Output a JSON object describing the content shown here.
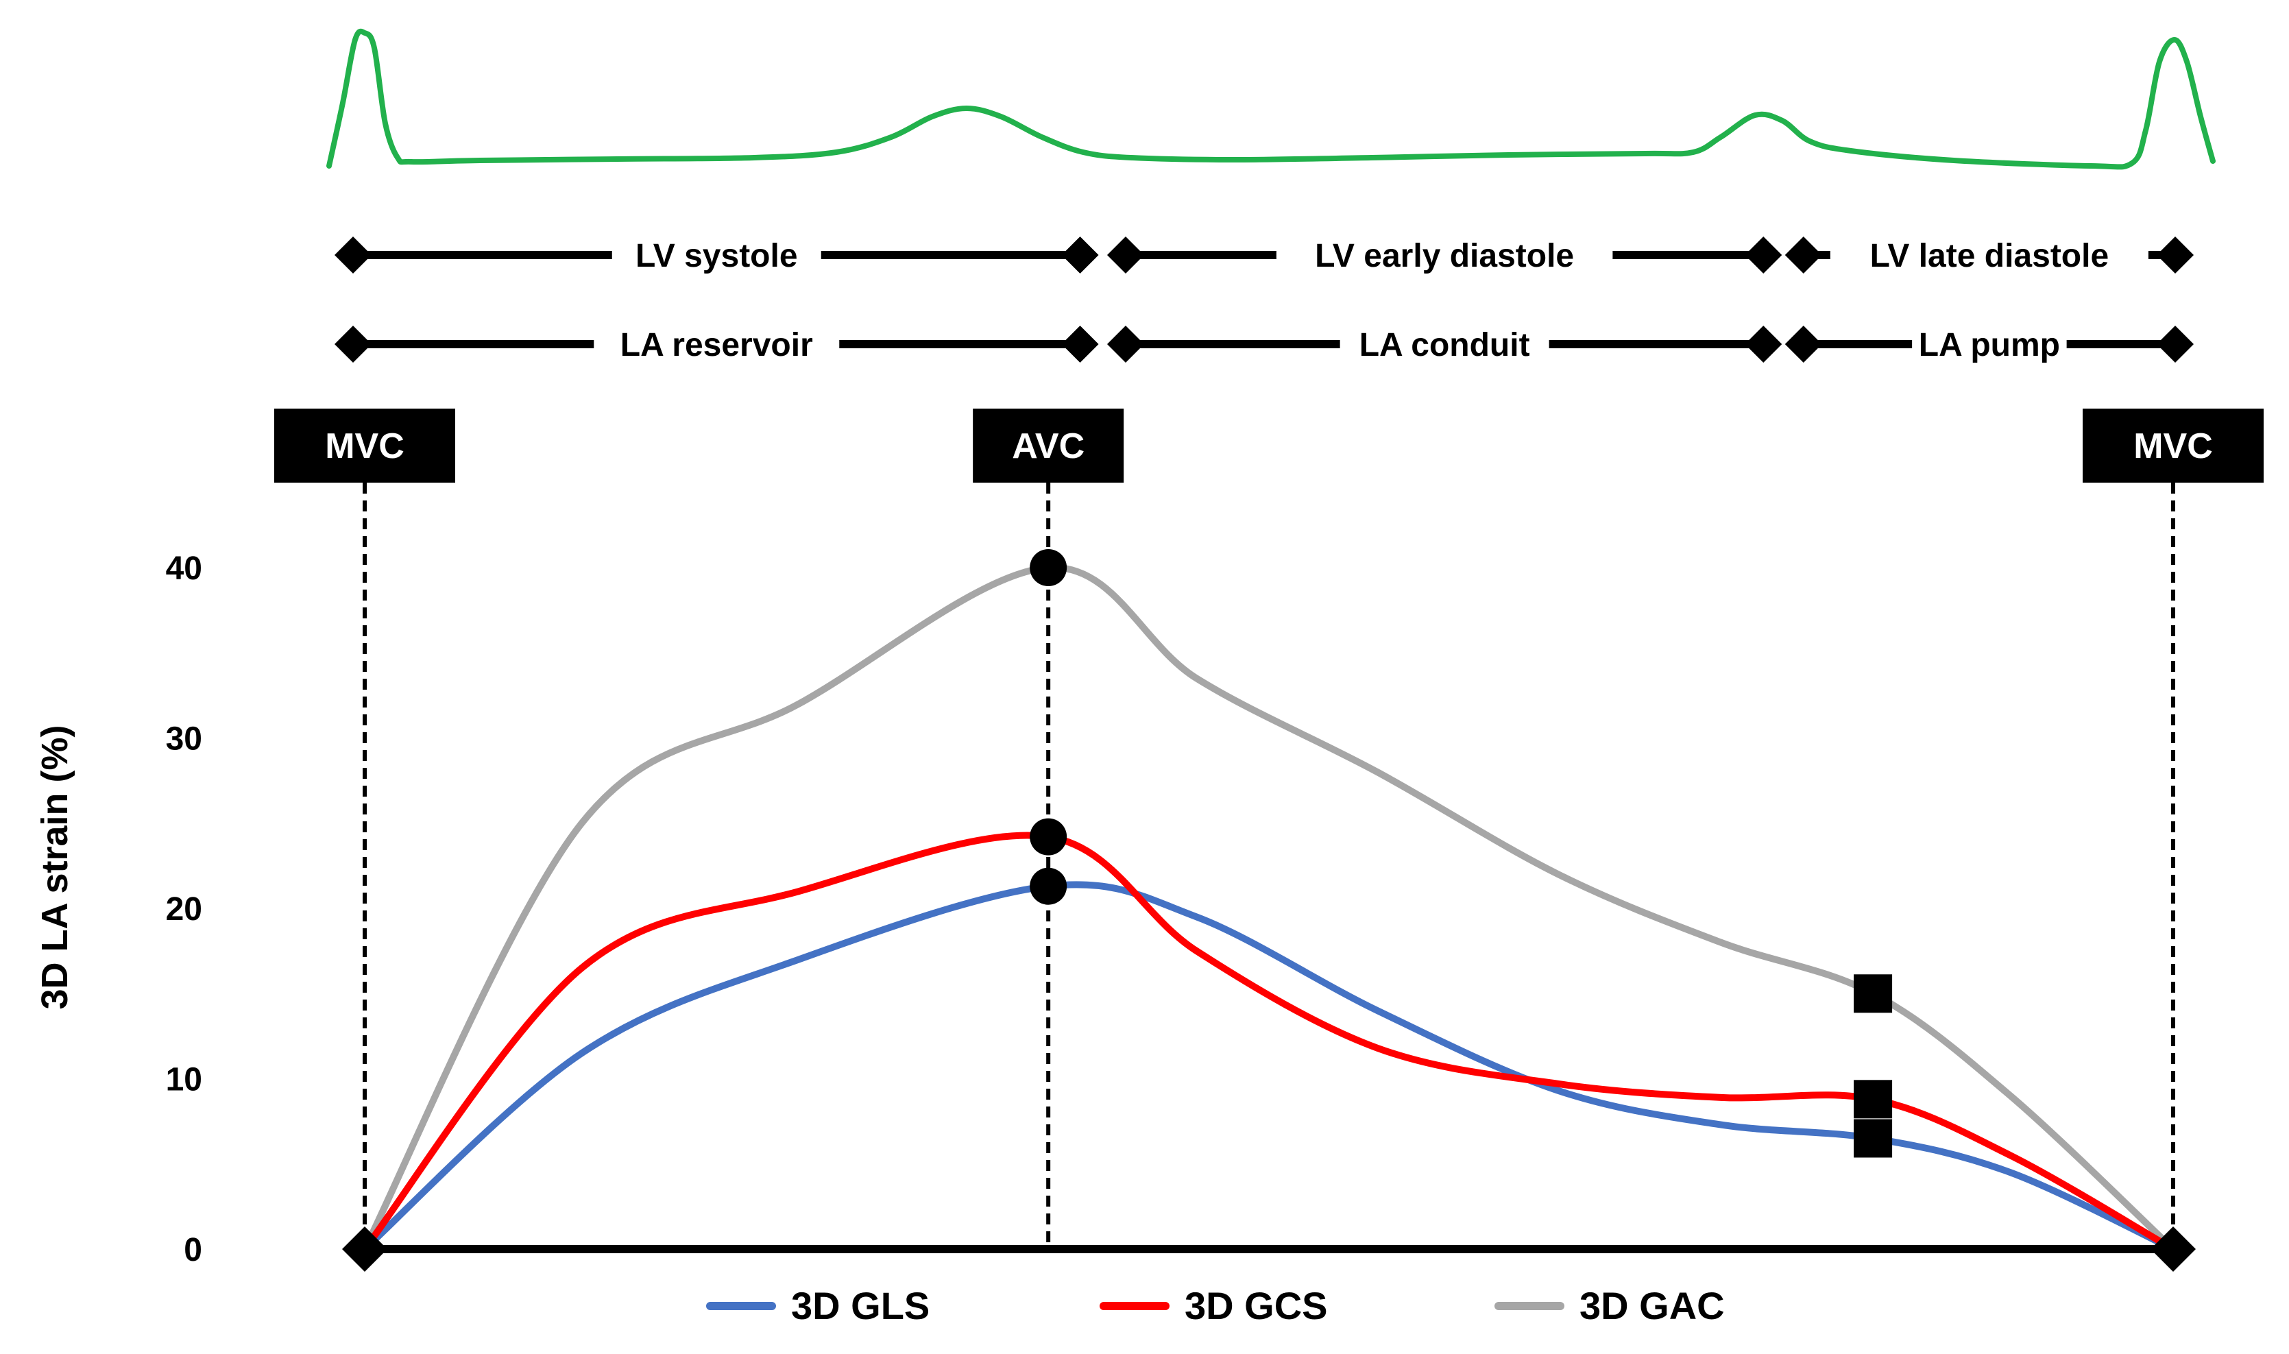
{
  "chart_data": {
    "type": "line",
    "ylabel": "3D LA strain (%)",
    "ylim": [
      0,
      40
    ],
    "yticks": [
      0,
      10,
      20,
      30,
      40
    ],
    "xlim": [
      0,
      100
    ],
    "events": [
      {
        "id": "mvc-start",
        "label": "MVC",
        "x": 0
      },
      {
        "id": "avc",
        "label": "AVC",
        "x": 37.8
      },
      {
        "id": "mvc-end",
        "label": "MVC",
        "x": 100
      }
    ],
    "lv_phases": [
      {
        "label": "LV systole",
        "start": 0,
        "end": 39.9
      },
      {
        "label": "LV early diastole",
        "start": 42.4,
        "end": 77.4
      },
      {
        "label": "LV late diastole",
        "start": 79.6,
        "end": 100
      }
    ],
    "la_phases": [
      {
        "label": "LA reservoir",
        "start": 0,
        "end": 39.9
      },
      {
        "label": "LA conduit",
        "start": 42.4,
        "end": 77.4
      },
      {
        "label": "LA pump",
        "start": 79.6,
        "end": 100
      }
    ],
    "series": [
      {
        "name": "3D GLS",
        "color": "#4472C4",
        "x": [
          0,
          12,
          24,
          37.8,
          46,
          56,
          66,
          75,
          83.4,
          91,
          100
        ],
        "values": [
          0,
          11.5,
          17,
          21.3,
          19.5,
          14,
          9.3,
          7.3,
          6.5,
          4.5,
          0
        ],
        "peak_index": 3,
        "pump_index": 8
      },
      {
        "name": "3D GCS",
        "color": "#FF0000",
        "x": [
          0,
          12,
          24,
          37.8,
          46,
          56,
          66,
          75,
          83.4,
          91,
          100
        ],
        "values": [
          0,
          16.5,
          21,
          24.2,
          17.5,
          11.8,
          9.7,
          8.9,
          8.8,
          5.5,
          0
        ],
        "peak_index": 3,
        "pump_index": 8
      },
      {
        "name": "3D GAC",
        "color": "#A6A6A6",
        "x": [
          0,
          12,
          24,
          37.8,
          46,
          56,
          66,
          75,
          83.4,
          91,
          100
        ],
        "values": [
          0,
          25,
          32,
          40,
          33.5,
          28,
          22,
          18,
          15,
          9,
          0
        ],
        "peak_index": 3,
        "pump_index": 8
      }
    ],
    "ecg_color": "#22B14C"
  }
}
